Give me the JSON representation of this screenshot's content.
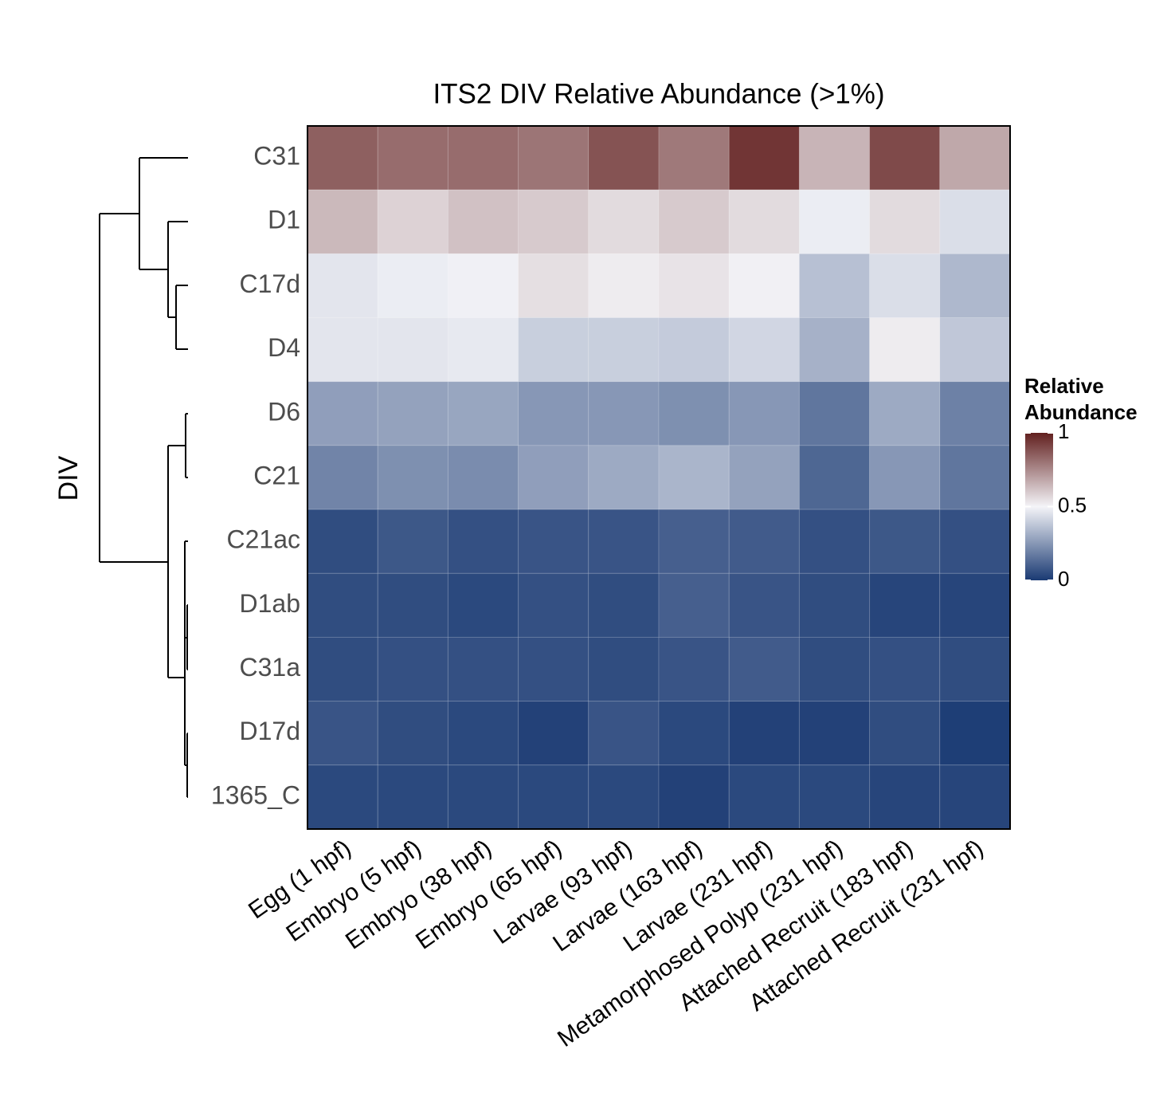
{
  "chart_data": {
    "type": "heatmap",
    "title": "ITS2 DIV Relative Abundance (>1%)",
    "y_label": "DIV",
    "x_categories": [
      "Egg (1 hpf)",
      "Embryo (5 hpf)",
      "Embryo (38 hpf)",
      "Embryo (65 hpf)",
      "Larvae (93 hpf)",
      "Larvae (163 hpf)",
      "Larvae (231 hpf)",
      "Metamorphosed Polyp (231 hpf)",
      "Attached Recruit (183 hpf)",
      "Attached Recruit (231 hpf)"
    ],
    "y_categories": [
      "C31",
      "D1",
      "C17d",
      "D4",
      "D6",
      "C21",
      "C21ac",
      "D1ab",
      "C31a",
      "D17d",
      "1365_C"
    ],
    "values": [
      [
        0.85,
        0.82,
        0.82,
        0.8,
        0.88,
        0.79,
        0.95,
        0.65,
        0.9,
        0.68
      ],
      [
        0.64,
        0.58,
        0.62,
        0.6,
        0.56,
        0.6,
        0.56,
        0.48,
        0.56,
        0.44
      ],
      [
        0.46,
        0.48,
        0.49,
        0.55,
        0.52,
        0.54,
        0.51,
        0.36,
        0.44,
        0.34
      ],
      [
        0.46,
        0.46,
        0.47,
        0.4,
        0.4,
        0.39,
        0.42,
        0.32,
        0.52,
        0.38
      ],
      [
        0.27,
        0.28,
        0.29,
        0.25,
        0.25,
        0.23,
        0.25,
        0.16,
        0.3,
        0.19
      ],
      [
        0.2,
        0.23,
        0.22,
        0.27,
        0.3,
        0.33,
        0.28,
        0.12,
        0.25,
        0.16
      ],
      [
        0.05,
        0.08,
        0.06,
        0.07,
        0.07,
        0.1,
        0.09,
        0.06,
        0.08,
        0.06
      ],
      [
        0.05,
        0.05,
        0.04,
        0.06,
        0.05,
        0.1,
        0.07,
        0.05,
        0.03,
        0.03
      ],
      [
        0.05,
        0.06,
        0.06,
        0.06,
        0.05,
        0.07,
        0.09,
        0.05,
        0.06,
        0.05
      ],
      [
        0.07,
        0.05,
        0.04,
        0.02,
        0.07,
        0.04,
        0.02,
        0.02,
        0.05,
        0.01
      ],
      [
        0.04,
        0.04,
        0.04,
        0.04,
        0.04,
        0.02,
        0.04,
        0.04,
        0.03,
        0.03
      ]
    ],
    "colors": [
      "#1a3a73",
      "#f4f4f8",
      "#62201f"
    ],
    "legend_title": "Relative Abundance",
    "colorbar_lim": [
      0,
      1
    ],
    "colorbar_ticks": [
      0,
      0.5,
      1
    ]
  }
}
